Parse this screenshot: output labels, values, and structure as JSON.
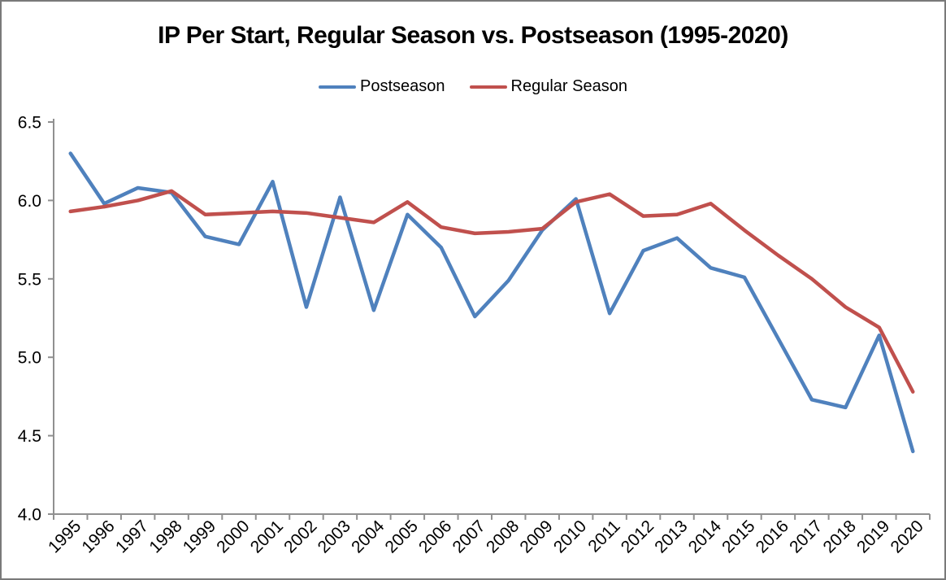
{
  "chart": {
    "title": "IP Per Start, Regular Season vs. Postseason (1995-2020)"
  },
  "chart_data": {
    "type": "line",
    "title": "IP Per Start, Regular Season vs. Postseason (1995-2020)",
    "categories": [
      "1995",
      "1996",
      "1997",
      "1998",
      "1999",
      "2000",
      "2001",
      "2002",
      "2003",
      "2004",
      "2005",
      "2006",
      "2007",
      "2008",
      "2009",
      "2010",
      "2011",
      "2012",
      "2013",
      "2014",
      "2015",
      "2016",
      "2017",
      "2018",
      "2019",
      "2020"
    ],
    "series": [
      {
        "name": "Postseason",
        "color": "#4F81BD",
        "values": [
          6.3,
          5.98,
          6.08,
          6.05,
          5.77,
          5.72,
          6.12,
          5.32,
          6.02,
          5.3,
          5.91,
          5.7,
          5.26,
          5.49,
          5.81,
          6.01,
          5.28,
          5.68,
          5.76,
          5.57,
          5.51,
          5.12,
          4.73,
          4.68,
          5.14,
          4.4
        ]
      },
      {
        "name": "Regular Season",
        "color": "#C0504D",
        "values": [
          5.93,
          5.96,
          6.0,
          6.06,
          5.91,
          5.92,
          5.93,
          5.92,
          5.89,
          5.86,
          5.99,
          5.83,
          5.79,
          5.8,
          5.82,
          5.99,
          6.04,
          5.9,
          5.91,
          5.98,
          5.81,
          5.65,
          5.5,
          5.32,
          5.19,
          4.78
        ]
      }
    ],
    "xlabel": "",
    "ylabel": "",
    "ylim": [
      4.0,
      6.5
    ],
    "yticks": [
      6.5,
      6.0,
      5.5,
      5.0,
      4.5,
      4.0
    ],
    "ytick_format_decimals": 1,
    "legend_position": "top",
    "grid": false,
    "axis_color": "#909090",
    "text_color": "#000000",
    "x_label_rotation_deg": -45
  }
}
